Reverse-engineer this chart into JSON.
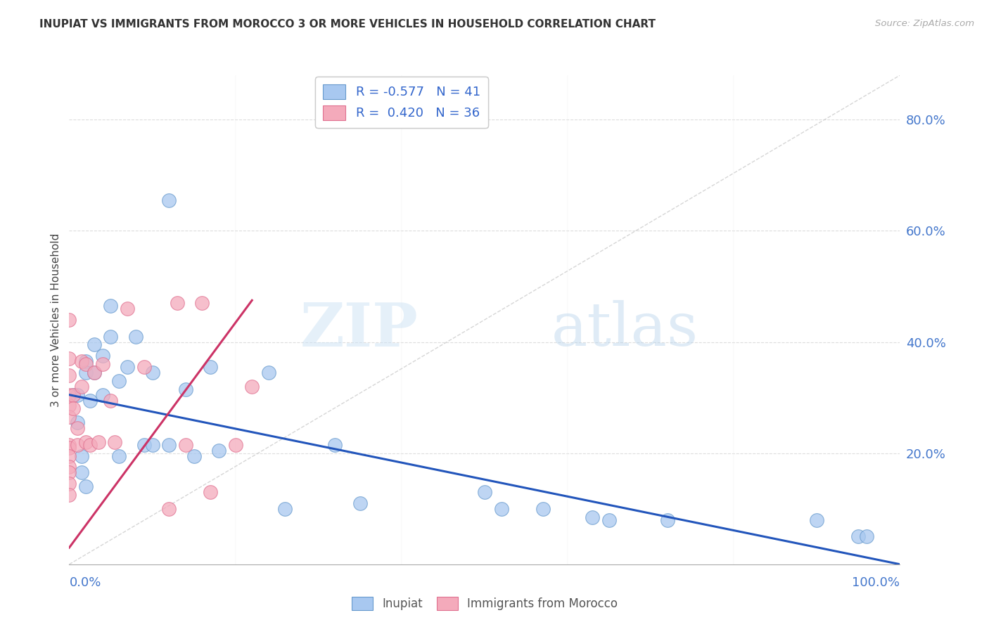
{
  "title": "INUPIAT VS IMMIGRANTS FROM MOROCCO 3 OR MORE VEHICLES IN HOUSEHOLD CORRELATION CHART",
  "source": "Source: ZipAtlas.com",
  "ylabel": "3 or more Vehicles in Household",
  "xlim": [
    0.0,
    1.0
  ],
  "ylim": [
    0.0,
    0.88
  ],
  "yticks_right": [
    0.2,
    0.4,
    0.6,
    0.8
  ],
  "yticklabels_right": [
    "20.0%",
    "40.0%",
    "60.0%",
    "80.0%"
  ],
  "xtick_left_label": "0.0%",
  "xtick_right_label": "100.0%",
  "inupiat_color": "#A8C8F0",
  "morocco_color": "#F4AABB",
  "inupiat_edge": "#6699CC",
  "morocco_edge": "#E07090",
  "trend_inupiat_color": "#2255BB",
  "trend_morocco_color": "#CC3366",
  "diagonal_color": "#CCCCCC",
  "watermark_zip": "ZIP",
  "watermark_atlas": "atlas",
  "legend_label1": "R = -0.577   N = 41",
  "legend_label2": "R =  0.420   N = 36",
  "inupiat_trend_x": [
    0.0,
    1.0
  ],
  "inupiat_trend_y": [
    0.305,
    0.0
  ],
  "morocco_trend_x": [
    0.0,
    0.22
  ],
  "morocco_trend_y": [
    0.03,
    0.475
  ],
  "inupiat_x": [
    0.005,
    0.01,
    0.01,
    0.015,
    0.015,
    0.02,
    0.02,
    0.02,
    0.025,
    0.03,
    0.03,
    0.04,
    0.04,
    0.05,
    0.05,
    0.06,
    0.06,
    0.07,
    0.08,
    0.09,
    0.1,
    0.1,
    0.12,
    0.12,
    0.14,
    0.15,
    0.17,
    0.18,
    0.24,
    0.26,
    0.32,
    0.35,
    0.5,
    0.52,
    0.57,
    0.63,
    0.65,
    0.72,
    0.9,
    0.95,
    0.96
  ],
  "inupiat_y": [
    0.305,
    0.305,
    0.255,
    0.195,
    0.165,
    0.365,
    0.345,
    0.14,
    0.295,
    0.395,
    0.345,
    0.375,
    0.305,
    0.465,
    0.41,
    0.33,
    0.195,
    0.355,
    0.41,
    0.215,
    0.345,
    0.215,
    0.655,
    0.215,
    0.315,
    0.195,
    0.355,
    0.205,
    0.345,
    0.1,
    0.215,
    0.11,
    0.13,
    0.1,
    0.1,
    0.085,
    0.08,
    0.08,
    0.08,
    0.05,
    0.05
  ],
  "morocco_x": [
    0.0,
    0.0,
    0.0,
    0.0,
    0.0,
    0.0,
    0.0,
    0.0,
    0.0,
    0.0,
    0.0,
    0.0,
    0.0,
    0.005,
    0.005,
    0.01,
    0.01,
    0.015,
    0.015,
    0.02,
    0.02,
    0.025,
    0.03,
    0.035,
    0.04,
    0.05,
    0.055,
    0.07,
    0.09,
    0.12,
    0.13,
    0.14,
    0.16,
    0.17,
    0.2,
    0.22
  ],
  "morocco_y": [
    0.44,
    0.37,
    0.34,
    0.305,
    0.285,
    0.265,
    0.215,
    0.21,
    0.195,
    0.175,
    0.165,
    0.145,
    0.125,
    0.305,
    0.28,
    0.245,
    0.215,
    0.365,
    0.32,
    0.22,
    0.36,
    0.215,
    0.345,
    0.22,
    0.36,
    0.295,
    0.22,
    0.46,
    0.355,
    0.1,
    0.47,
    0.215,
    0.47,
    0.13,
    0.215,
    0.32
  ]
}
